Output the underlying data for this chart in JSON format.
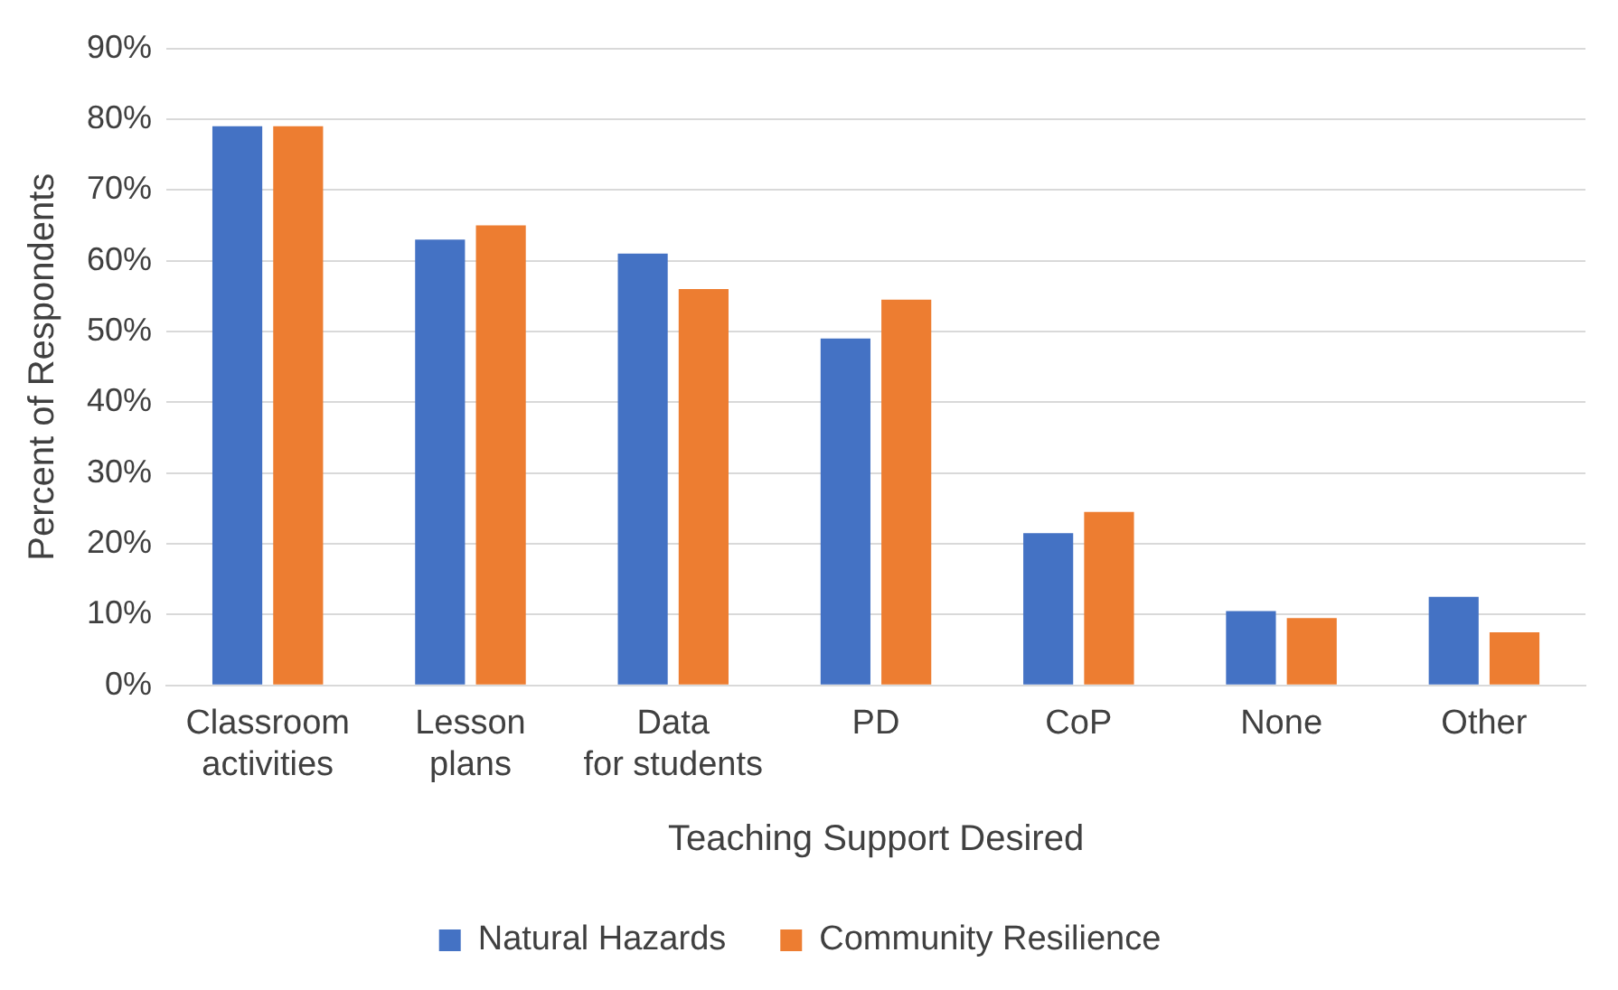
{
  "chart_data": {
    "type": "bar",
    "xlabel": "Teaching Support Desired",
    "ylabel": "Percent of Respondents",
    "categories": [
      "Classroom activities",
      "Lesson plans",
      "Data for students",
      "PD",
      "CoP",
      "None",
      "Other"
    ],
    "series": [
      {
        "name": "Natural Hazards",
        "color": "#4472c4",
        "values": [
          79,
          63,
          61,
          49,
          21.5,
          10.5,
          12.5
        ]
      },
      {
        "name": "Community Resilience",
        "color": "#ed7d31",
        "values": [
          79,
          65,
          56,
          54.5,
          24.5,
          9.5,
          7.5
        ]
      }
    ],
    "ylim": [
      0,
      90
    ],
    "yticks": [
      {
        "value": 0,
        "label": "0%"
      },
      {
        "value": 10,
        "label": "10%"
      },
      {
        "value": 20,
        "label": "20%"
      },
      {
        "value": 30,
        "label": "30%"
      },
      {
        "value": 40,
        "label": "40%"
      },
      {
        "value": 50,
        "label": "50%"
      },
      {
        "value": 60,
        "label": "60%"
      },
      {
        "value": 70,
        "label": "70%"
      },
      {
        "value": 80,
        "label": "80%"
      },
      {
        "value": 90,
        "label": "90%"
      }
    ],
    "grid": "y",
    "legend": "bottom"
  }
}
